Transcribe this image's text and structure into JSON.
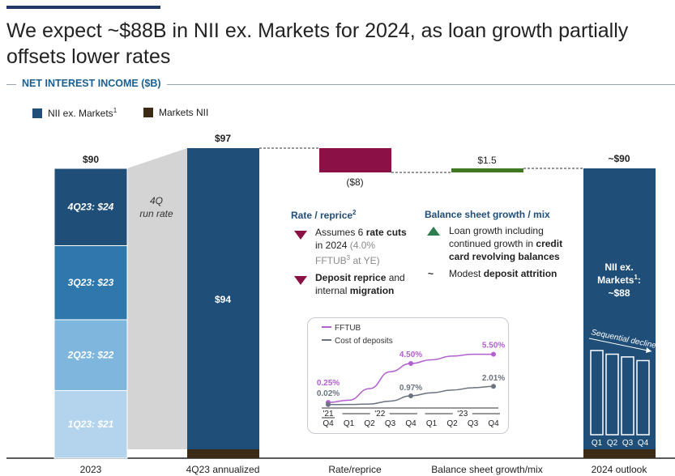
{
  "title": "We expect ~$88B in NII ex. Markets for 2024, as loan growth partially offsets lower rates",
  "section_label": "NET INTEREST INCOME ($B)",
  "legend": [
    {
      "label": "NII ex. Markets",
      "sup": "1",
      "color": "#1f4e79"
    },
    {
      "label": "Markets NII",
      "sup": "",
      "color": "#3d2a14"
    }
  ],
  "chart_data": {
    "type": "bar",
    "title": "NET INTEREST INCOME ($B)",
    "categories": [
      "2023",
      "4Q23 annualized",
      "Rate/reprice",
      "Balance sheet growth/mix",
      "2024 outlook"
    ],
    "ylim": [
      0,
      100
    ],
    "bars": {
      "y2023": {
        "total_label": "$90",
        "segments": [
          {
            "label": "1Q23: $21",
            "value": 21,
            "color": "#b3d4ec"
          },
          {
            "label": "2Q23: $22",
            "value": 22,
            "color": "#7fb6de"
          },
          {
            "label": "3Q23: $23",
            "value": 23,
            "color": "#2e78ad"
          },
          {
            "label": "4Q23: $24",
            "value": 24,
            "color": "#1f4e79"
          }
        ]
      },
      "q4_annualized": {
        "total_label": "$97",
        "nii_ex_markets": 94,
        "nii_label": "$94",
        "markets_nii": 3
      },
      "rate_reprice": {
        "label": "($8)",
        "value": -8,
        "color": "#8b1045"
      },
      "bs_growth": {
        "label": "$1.5",
        "value": 1.5,
        "color": "#3f7a22"
      },
      "outlook_2024": {
        "total_label": "~$90",
        "nii_ex_markets": 88,
        "markets_nii": 2,
        "inner_label_lines": [
          "NII ex.",
          "Markets",
          "1",
          ":",
          "~$88"
        ],
        "sequential_label": "Sequential decline",
        "sequential_q": [
          "Q1",
          "Q2",
          "Q3",
          "Q4"
        ],
        "sequential_values": [
          0.92,
          0.88,
          0.85,
          0.81
        ]
      }
    },
    "run_rate_label": [
      "4Q",
      "run rate"
    ],
    "inset": {
      "type": "line",
      "legend": [
        "FFTUB",
        "Cost of deposits"
      ],
      "x": [
        "Q4",
        "Q1",
        "Q2",
        "Q3",
        "Q4",
        "Q1",
        "Q2",
        "Q3",
        "Q4"
      ],
      "year_labels": [
        "'21",
        "'22",
        "'23"
      ],
      "series": [
        {
          "name": "FFTUB",
          "color": "#b25fd0",
          "values": [
            0.25,
            0.5,
            1.75,
            3.6,
            4.5,
            4.9,
            5.3,
            5.5,
            5.5
          ],
          "labeled": [
            {
              "i": 0,
              "text": "0.25%"
            },
            {
              "i": 4,
              "text": "4.50%"
            },
            {
              "i": 8,
              "text": "5.50%"
            }
          ]
        },
        {
          "name": "Cost of deposits",
          "color": "#6b7380",
          "values": [
            0.02,
            0.03,
            0.08,
            0.4,
            0.97,
            1.3,
            1.6,
            1.85,
            2.01
          ],
          "labeled": [
            {
              "i": 0,
              "text": "0.02%"
            },
            {
              "i": 4,
              "text": "0.97%"
            },
            {
              "i": 8,
              "text": "2.01%"
            }
          ]
        }
      ],
      "ylim": [
        0,
        6
      ]
    }
  },
  "rate_reprice_note": {
    "heading": "Rate / reprice",
    "heading_sup": "2",
    "bullet1": {
      "a": "Assumes 6 ",
      "b": "rate cuts",
      "c": " in 2024 ",
      "d": "(4.0%",
      "e": "FFTUB",
      "f": "3",
      "g": " at YE)"
    },
    "bullet2": {
      "a": "Deposit reprice",
      "b": " and internal ",
      "c": "migration"
    }
  },
  "bs_note": {
    "heading": "Balance sheet growth / mix",
    "bullet1": {
      "a": "Loan growth including continued growth in ",
      "b": "credit card revolving balances"
    },
    "tilde": "~",
    "bullet2": {
      "a": "Modest ",
      "b": "deposit attrition"
    }
  }
}
